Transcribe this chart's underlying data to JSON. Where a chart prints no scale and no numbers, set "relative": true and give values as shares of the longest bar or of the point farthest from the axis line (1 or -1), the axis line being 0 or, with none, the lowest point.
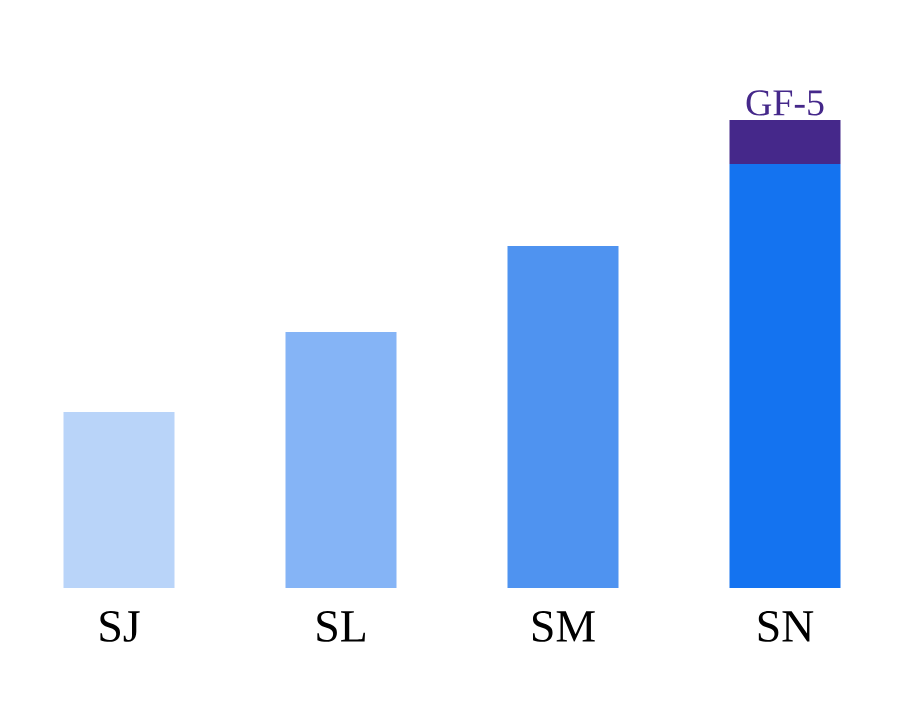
{
  "chart_data": {
    "type": "bar",
    "relative": true,
    "stacked": true,
    "categories": [
      "SJ",
      "SL",
      "SM",
      "SN"
    ],
    "series": [
      {
        "colors": [
          "#b9d4f9",
          "#85b4f6",
          "#4f93f0",
          "#1473f0"
        ],
        "values": [
          0.376,
          0.547,
          0.731,
          0.906
        ]
      },
      {
        "name": "GF-5",
        "color": "#45288a",
        "values": [
          null,
          null,
          null,
          0.094
        ]
      }
    ]
  }
}
